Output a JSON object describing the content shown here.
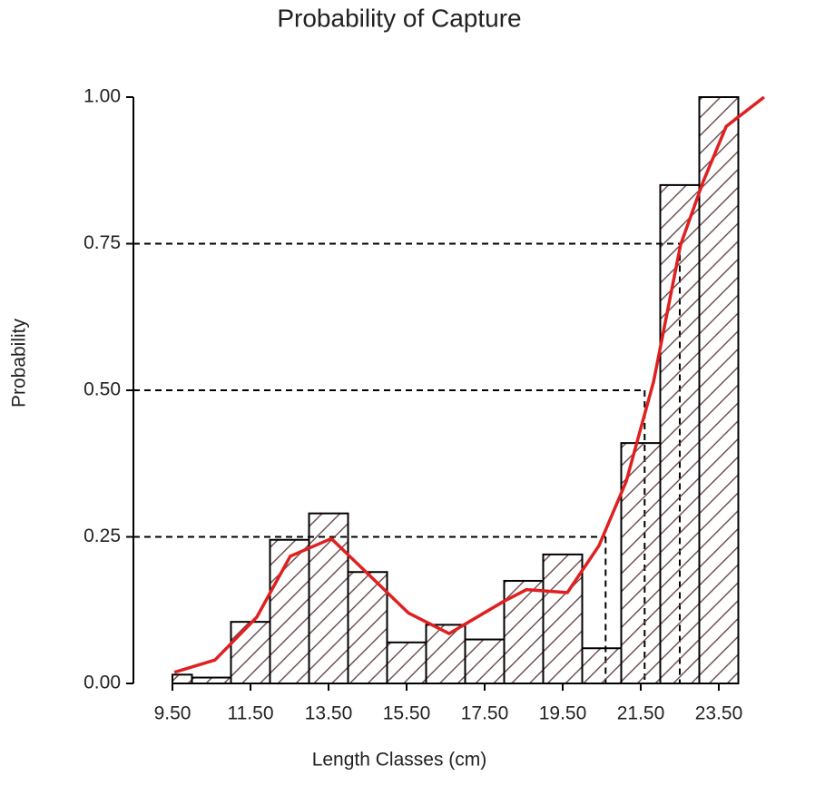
{
  "chart_data": {
    "type": "histogram",
    "title": "Probability of Capture",
    "xlabel": "Length Classes (cm)",
    "ylabel": "Probability",
    "bins": [
      9.5,
      10,
      11,
      12,
      13,
      14,
      15,
      16,
      17,
      18,
      19,
      20,
      21,
      22,
      23,
      24
    ],
    "values": [
      0.015,
      0.01,
      0.105,
      0.245,
      0.29,
      0.19,
      0.07,
      0.1,
      0.075,
      0.175,
      0.22,
      0.06,
      0.41,
      0.85,
      1.0
    ],
    "bar_edge_color": "#000000",
    "hatch_color": "#5a3a3a",
    "curve": {
      "color": "#e02020",
      "x": [
        9.55,
        10.59,
        11.66,
        12.52,
        13.57,
        14.15,
        15.55,
        16.59,
        17.99,
        18.57,
        19.62,
        20.43,
        21.13,
        21.83,
        22.52,
        23.1,
        23.69,
        24.66
      ],
      "y": [
        0.019,
        0.04,
        0.113,
        0.217,
        0.247,
        0.21,
        0.12,
        0.085,
        0.14,
        0.16,
        0.155,
        0.235,
        0.345,
        0.515,
        0.748,
        0.856,
        0.95,
        1.0
      ]
    },
    "reference_lines": [
      {
        "y": 0.25,
        "x": 20.6
      },
      {
        "y": 0.5,
        "x": 21.6
      },
      {
        "y": 0.75,
        "x": 22.5
      }
    ],
    "xlim": [
      8.5,
      25.5
    ],
    "ylim": [
      0,
      1
    ],
    "xticks": [
      {
        "value": 9.5,
        "label": "9.50"
      },
      {
        "value": 11.5,
        "label": "11.50"
      },
      {
        "value": 13.5,
        "label": "13.50"
      },
      {
        "value": 15.5,
        "label": "15.50"
      },
      {
        "value": 17.5,
        "label": "17.50"
      },
      {
        "value": 19.5,
        "label": "19.50"
      },
      {
        "value": 21.5,
        "label": "21.50"
      },
      {
        "value": 23.5,
        "label": "23.50"
      }
    ],
    "yticks": [
      {
        "value": 0,
        "label": "0.00"
      },
      {
        "value": 0.25,
        "label": "0.25"
      },
      {
        "value": 0.5,
        "label": "0.50"
      },
      {
        "value": 0.75,
        "label": "0.75"
      },
      {
        "value": 1,
        "label": "1.00"
      }
    ]
  }
}
